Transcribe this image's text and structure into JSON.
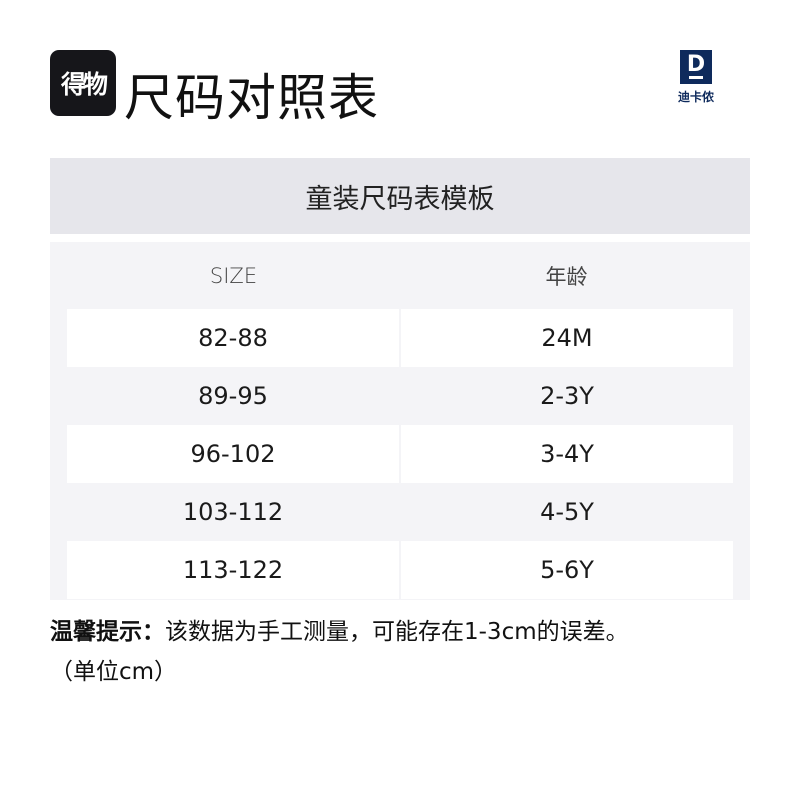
{
  "header": {
    "app_logo_text": "得物",
    "title": "尺码对照表",
    "brand_logo_glyph": "D",
    "brand_name": "迪卡侬"
  },
  "table": {
    "title": "童装尺码表模板",
    "columns": [
      "SIZE",
      "年龄"
    ],
    "rows": [
      [
        "82-88",
        "24M"
      ],
      [
        "89-95",
        "2-3Y"
      ],
      [
        "96-102",
        "3-4Y"
      ],
      [
        "103-112",
        "4-5Y"
      ],
      [
        "113-122",
        "5-6Y"
      ]
    ]
  },
  "note": {
    "label": "温馨提示：",
    "text": "该数据为手工测量，可能存在1-3cm的误差。",
    "unit": "（单位cm）"
  },
  "colors": {
    "brand": "#0e2a5c",
    "title_band": "#e6e6eb",
    "panel": "#f4f4f7"
  }
}
